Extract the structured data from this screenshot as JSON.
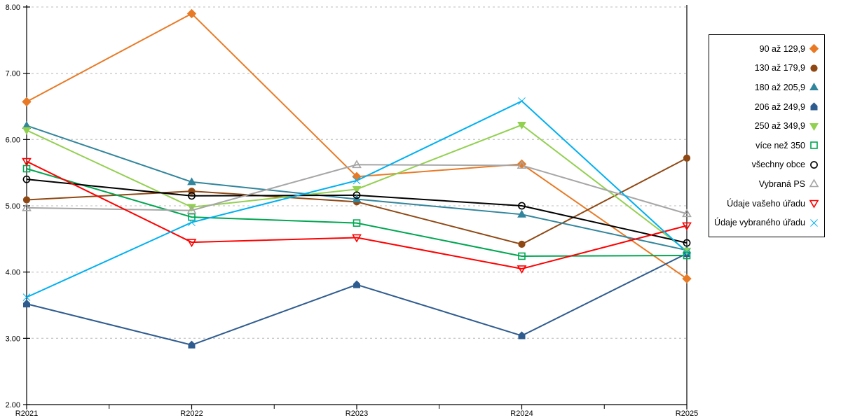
{
  "chart_data": {
    "type": "line",
    "title": "",
    "xlabel": "",
    "ylabel": "",
    "categories": [
      "R2021",
      "R2022",
      "R2023",
      "R2024",
      "R2025"
    ],
    "ylim": [
      2,
      8
    ],
    "ytick_labels": [
      "2.00",
      "3.00",
      "4.00",
      "5.00",
      "6.00",
      "7.00",
      "8.00"
    ],
    "grid": "horizontal-dashed",
    "legend_position": "right",
    "gridline_color": "#c9c9c9",
    "axis_color": "#000000",
    "series": [
      {
        "name": "90 až 129,9",
        "marker": "diamond",
        "fill": "solid",
        "color": "#E87A25",
        "values": [
          6.57,
          7.9,
          5.44,
          5.63,
          3.9
        ]
      },
      {
        "name": "130 až 179,9",
        "marker": "circle",
        "fill": "solid",
        "color": "#8F4813",
        "values": [
          5.09,
          5.22,
          5.06,
          4.42,
          5.72
        ]
      },
      {
        "name": "180 až 205,9",
        "marker": "triangle-up",
        "fill": "solid",
        "color": "#31859C",
        "values": [
          6.21,
          5.36,
          5.1,
          4.87,
          4.33
        ]
      },
      {
        "name": "206 až 249,9",
        "marker": "pentagon",
        "fill": "solid",
        "color": "#2F5C8F",
        "values": [
          3.52,
          2.9,
          3.81,
          3.04,
          4.28
        ]
      },
      {
        "name": "250 až 349,9",
        "marker": "triangle-down",
        "fill": "solid",
        "color": "#92D050",
        "values": [
          6.14,
          4.98,
          5.25,
          6.22,
          4.32
        ]
      },
      {
        "name": "více než 350",
        "marker": "square",
        "fill": "open",
        "color": "#00A651",
        "values": [
          5.56,
          4.83,
          4.74,
          4.24,
          4.25
        ]
      },
      {
        "name": "všechny obce",
        "marker": "circle",
        "fill": "open",
        "color": "#000000",
        "values": [
          5.4,
          5.15,
          5.16,
          5.0,
          4.44
        ]
      },
      {
        "name": "Vybraná PS",
        "marker": "triangle-up",
        "fill": "open",
        "color": "#A6A6A6",
        "values": [
          4.97,
          4.93,
          5.62,
          5.61,
          4.88
        ]
      },
      {
        "name": "Údaje vašeho úřadu",
        "marker": "triangle-down",
        "fill": "open",
        "color": "#FF0000",
        "values": [
          5.67,
          4.45,
          4.52,
          4.05,
          4.7
        ]
      },
      {
        "name": "Údaje vybraného úřadu",
        "marker": "x",
        "fill": "solid",
        "color": "#00B0F0",
        "values": [
          3.62,
          4.75,
          5.38,
          6.58,
          4.3
        ]
      }
    ]
  }
}
